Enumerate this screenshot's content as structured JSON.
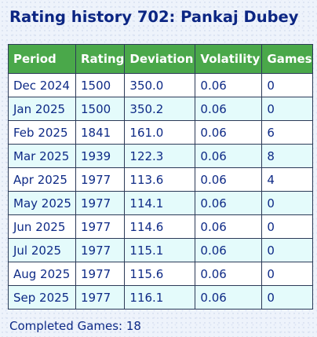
{
  "title": "Rating history 702: Pankaj Dubey",
  "table": {
    "headers": [
      "Period",
      "Rating",
      "Deviation",
      "Volatility",
      "Games"
    ],
    "rows": [
      [
        "Dec 2024",
        "1500",
        "350.0",
        "0.06",
        "0"
      ],
      [
        "Jan 2025",
        "1500",
        "350.2",
        "0.06",
        "0"
      ],
      [
        "Feb 2025",
        "1841",
        "161.0",
        "0.06",
        "6"
      ],
      [
        "Mar 2025",
        "1939",
        "122.3",
        "0.06",
        "8"
      ],
      [
        "Apr 2025",
        "1977",
        "113.6",
        "0.06",
        "4"
      ],
      [
        "May 2025",
        "1977",
        "114.1",
        "0.06",
        "0"
      ],
      [
        "Jun 2025",
        "1977",
        "114.6",
        "0.06",
        "0"
      ],
      [
        "Jul 2025",
        "1977",
        "115.1",
        "0.06",
        "0"
      ],
      [
        "Aug 2025",
        "1977",
        "115.6",
        "0.06",
        "0"
      ],
      [
        "Sep 2025",
        "1977",
        "116.1",
        "0.06",
        "0"
      ]
    ]
  },
  "summary": "Completed Games: 18",
  "colors": {
    "header_bg": "#4aa84a",
    "row_alt_bg": "#e4fbfb",
    "text": "#0e2a86"
  }
}
